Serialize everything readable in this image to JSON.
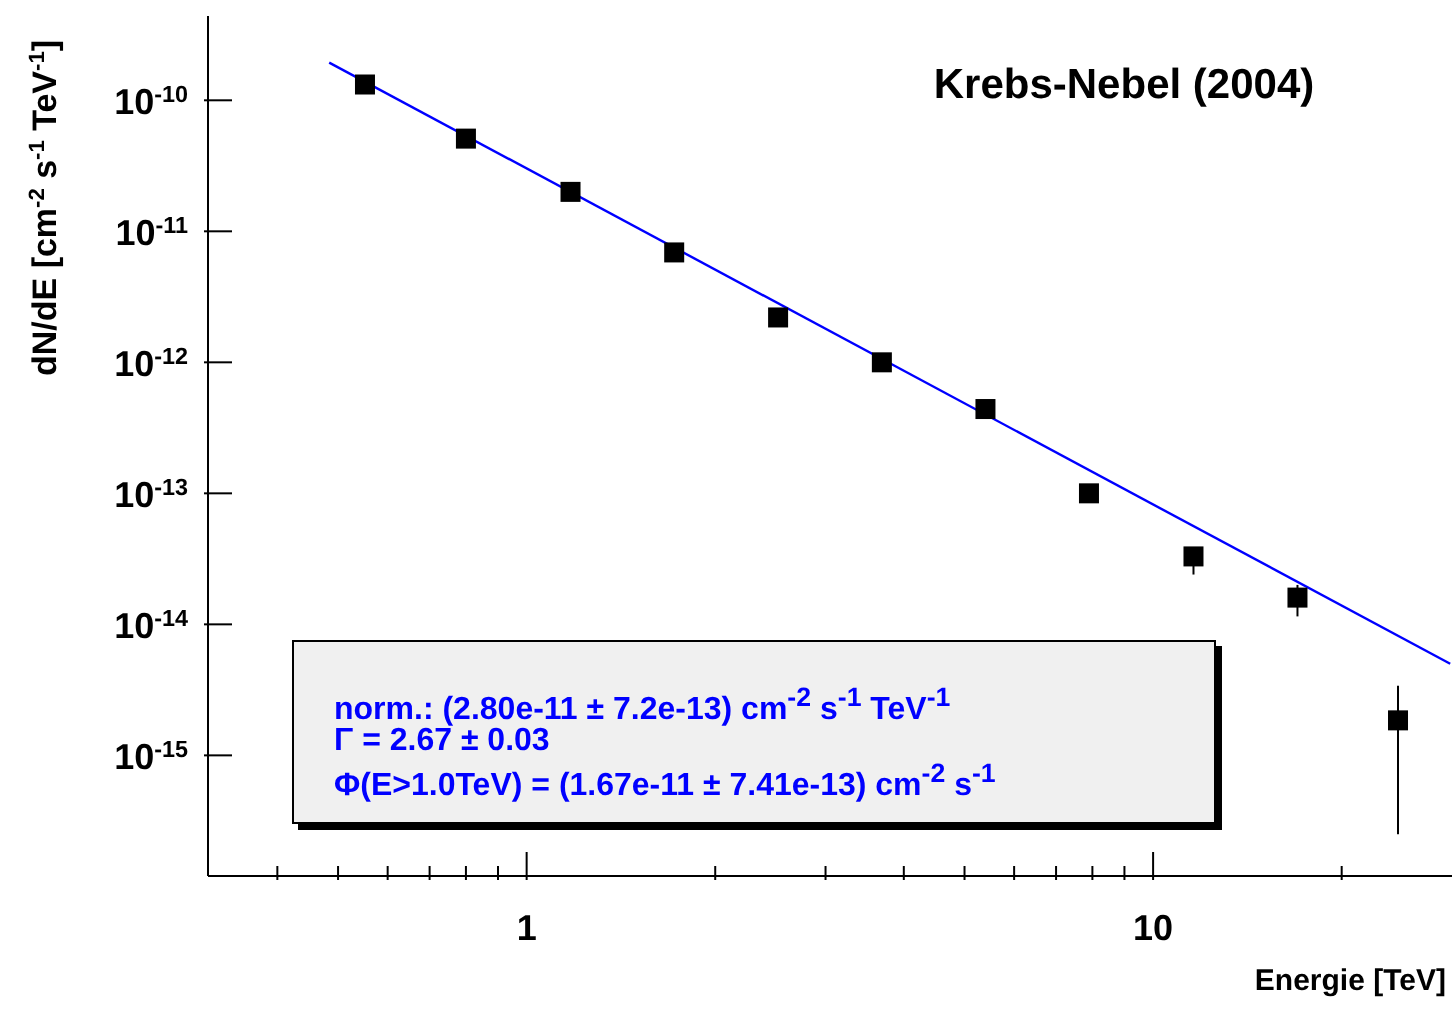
{
  "chart_data": {
    "type": "scatter",
    "title": "Krebs-Nebel (2004)",
    "xlabel": "Energie [TeV]",
    "ylabel": "dN/dE [cm$^{-2}$ s$^{-1}$ TeV$^{-1}$]",
    "annotations": [
      "norm.: (2.80e-11 ± 7.2e-13) cm$^{-2}$ s$^{-1}$ TeV$^{-1}$",
      "Γ = 2.67 ± 0.03",
      "Φ(E>1.0TeV) = (1.67e-11 ± 7.41e-13) cm$^{-2}$ s$^{-1}$"
    ],
    "log": "xy",
    "xlim": [
      0.31,
      30
    ],
    "ylim": [
      1.2e-16,
      4.4e-10
    ],
    "xticks": [
      {
        "value": 0.4,
        "label": null
      },
      {
        "value": 0.5,
        "label": null
      },
      {
        "value": 0.6,
        "label": null
      },
      {
        "value": 0.7,
        "label": null
      },
      {
        "value": 0.8,
        "label": null
      },
      {
        "value": 0.9,
        "label": null
      },
      1,
      {
        "value": 2,
        "label": null
      },
      {
        "value": 3,
        "label": null
      },
      {
        "value": 4,
        "label": null
      },
      {
        "value": 5,
        "label": null
      },
      {
        "value": 6,
        "label": null
      },
      {
        "value": 7,
        "label": null
      },
      {
        "value": 8,
        "label": null
      },
      {
        "value": 9,
        "label": null
      },
      10,
      {
        "value": 20,
        "label": null
      }
    ],
    "yticks": [
      {
        "value": 1e-15,
        "label": "10$^{-15}$"
      },
      {
        "value": 1e-14,
        "label": "10$^{-14}$"
      },
      {
        "value": 1e-13,
        "label": "10$^{-13}$"
      },
      {
        "value": 1e-12,
        "label": "10$^{-12}$"
      },
      {
        "value": 1e-11,
        "label": "10$^{-11}$"
      },
      {
        "value": 1e-10,
        "label": "10$^{-10}$"
      }
    ],
    "series": [
      {
        "marker": "square",
        "color": "#000000",
        "x": [
          0.552,
          0.8,
          1.175,
          1.72,
          2.52,
          3.69,
          5.4,
          7.9,
          11.6,
          17.0,
          24.6
        ],
        "values": [
          1.32e-10,
          5.1e-11,
          2e-11,
          6.9e-12,
          2.2e-12,
          1e-12,
          4.4e-13,
          1e-13,
          3.3e-14,
          1.6e-14,
          1.85e-15
        ],
        "errors": [
          null,
          null,
          null,
          null,
          null,
          null,
          null,
          null,
          [
            2.4e-14,
            3.6e-14
          ],
          [
            1.15e-14,
            2e-14
          ],
          [
            2.5e-16,
            3.4e-15
          ]
        ]
      },
      {
        "type": "line",
        "marker": "none",
        "line_style": "solid",
        "color": "#0000ff",
        "x": [
          0.484,
          29.8
        ],
        "values": [
          1.94e-10,
          5e-15
        ]
      }
    ]
  }
}
